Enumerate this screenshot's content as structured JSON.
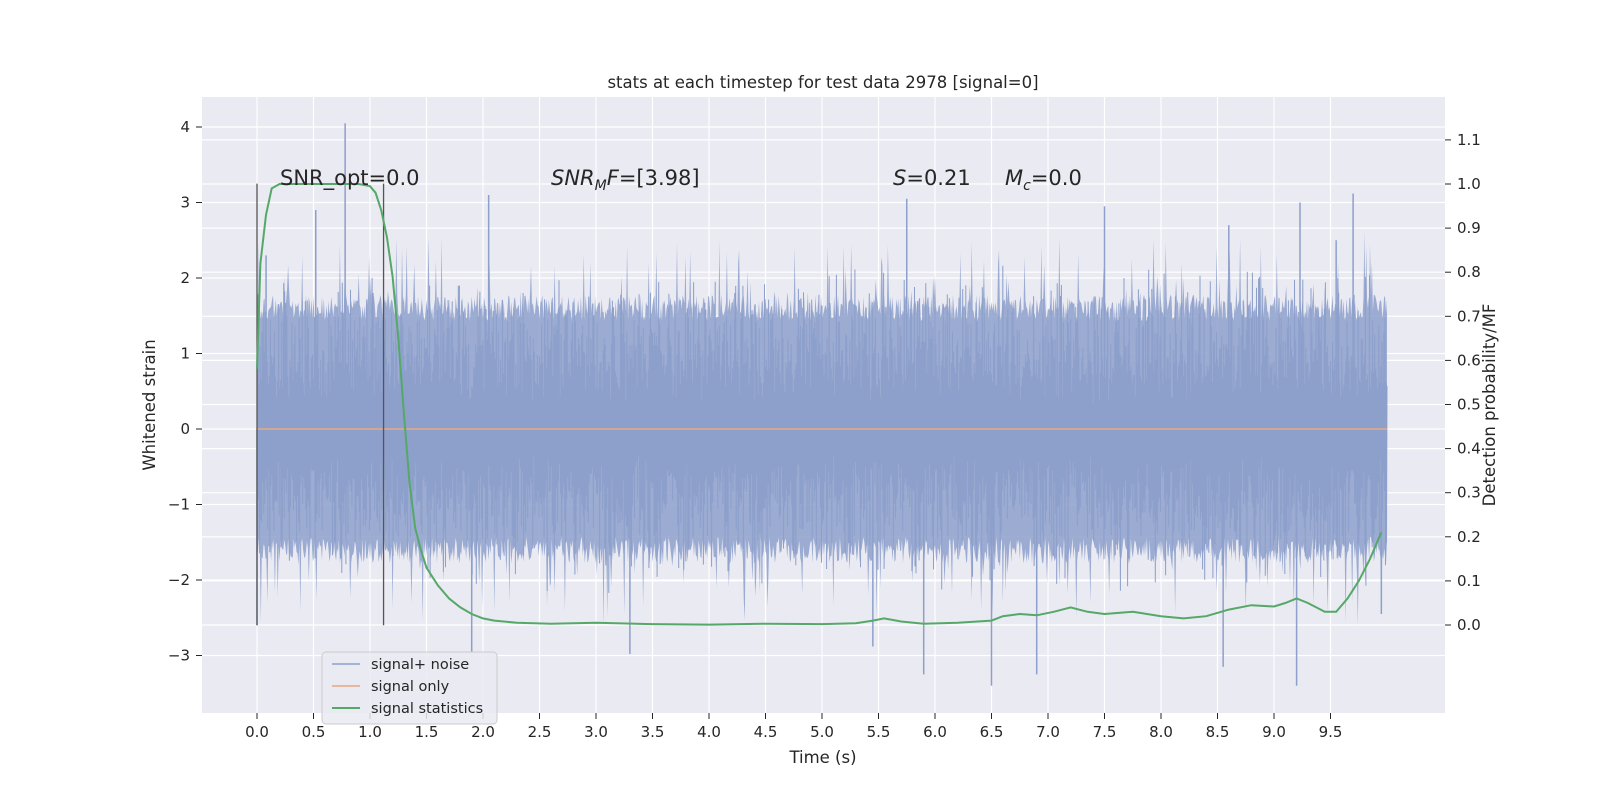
{
  "chart_data": {
    "type": "line",
    "title": "stats at each timestep for test data 2978 [signal=0]",
    "xlabel": "Time (s)",
    "ylabel": "Whitened strain",
    "ylabel_right": "Detection probability/MF",
    "xlim": [
      -0.48,
      10.5
    ],
    "ylim": [
      -3.75,
      4.4
    ],
    "ylim_right": [
      -0.2,
      1.19
    ],
    "x_ticks": [
      "0.0",
      "0.5",
      "1.0",
      "1.5",
      "2.0",
      "2.5",
      "3.0",
      "3.5",
      "4.0",
      "4.5",
      "5.0",
      "5.5",
      "6.0",
      "6.5",
      "7.0",
      "7.5",
      "8.0",
      "8.5",
      "9.0",
      "9.5"
    ],
    "y_ticks": [
      "4",
      "3",
      "2",
      "1",
      "0",
      "−1",
      "−2",
      "−3"
    ],
    "y_ticks_right": [
      "0.0",
      "0.1",
      "0.2",
      "0.3",
      "0.4",
      "0.5",
      "0.6",
      "0.7",
      "0.8",
      "0.9",
      "1.0",
      "1.1"
    ],
    "grid": true,
    "legend_position": "lower-left",
    "colors": {
      "noise": "#8da0cb",
      "signal": "#e8a882",
      "stats": "#55a868",
      "vline": "#555555",
      "axes_bg": "#eaeaf2",
      "grid": "#ffffff"
    },
    "noise_series": {
      "name": "signal+ noise",
      "x_range": [
        0.0,
        10.0
      ],
      "typical_band": [
        -1.5,
        1.5
      ],
      "notable_peaks": [
        [
          0.78,
          4.05
        ],
        [
          0.52,
          2.9
        ],
        [
          9.7,
          3.12
        ],
        [
          9.23,
          3.0
        ],
        [
          2.05,
          3.1
        ],
        [
          7.5,
          2.95
        ],
        [
          5.75,
          3.05
        ],
        [
          0.08,
          2.3
        ],
        [
          9.55,
          2.5
        ],
        [
          8.6,
          2.7
        ]
      ],
      "notable_troughs": [
        [
          1.9,
          -2.95
        ],
        [
          3.3,
          -2.98
        ],
        [
          5.45,
          -2.88
        ],
        [
          5.9,
          -3.25
        ],
        [
          6.5,
          -3.4
        ],
        [
          6.9,
          -3.25
        ],
        [
          8.55,
          -3.15
        ],
        [
          9.2,
          -3.4
        ],
        [
          0.0,
          -2.6
        ],
        [
          9.95,
          -2.45
        ]
      ]
    },
    "signal_series": {
      "name": "signal only",
      "x": [
        0.0,
        10.0
      ],
      "y": [
        0.0,
        0.0
      ]
    },
    "stats_series": {
      "name": "signal statistics",
      "x": [
        0.0,
        0.03,
        0.08,
        0.13,
        0.2,
        0.35,
        0.6,
        0.9,
        1.0,
        1.05,
        1.1,
        1.15,
        1.2,
        1.25,
        1.3,
        1.35,
        1.4,
        1.45,
        1.5,
        1.6,
        1.7,
        1.8,
        1.9,
        2.0,
        2.1,
        2.3,
        2.6,
        3.0,
        3.5,
        4.0,
        4.5,
        5.0,
        5.3,
        5.45,
        5.55,
        5.7,
        5.9,
        6.2,
        6.5,
        6.6,
        6.75,
        6.9,
        7.05,
        7.2,
        7.35,
        7.5,
        7.75,
        8.0,
        8.2,
        8.4,
        8.6,
        8.8,
        9.0,
        9.1,
        9.2,
        9.3,
        9.45,
        9.55,
        9.65,
        9.75,
        9.85,
        9.95
      ],
      "y": [
        0.58,
        0.82,
        0.93,
        0.99,
        1.0,
        1.0,
        1.0,
        1.0,
        0.995,
        0.98,
        0.94,
        0.88,
        0.79,
        0.65,
        0.48,
        0.32,
        0.22,
        0.17,
        0.13,
        0.09,
        0.06,
        0.04,
        0.025,
        0.015,
        0.01,
        0.005,
        0.003,
        0.005,
        0.002,
        0.001,
        0.003,
        0.002,
        0.004,
        0.01,
        0.015,
        0.008,
        0.003,
        0.005,
        0.01,
        0.02,
        0.025,
        0.022,
        0.03,
        0.04,
        0.03,
        0.025,
        0.03,
        0.02,
        0.015,
        0.02,
        0.035,
        0.045,
        0.042,
        0.05,
        0.06,
        0.05,
        0.03,
        0.03,
        0.06,
        0.1,
        0.15,
        0.21
      ]
    },
    "vlines": [
      {
        "x": 0.0,
        "ymin": -2.6,
        "ymax": 3.25
      },
      {
        "x": 1.12,
        "ymin": -2.6,
        "ymax": 3.25
      }
    ],
    "annotations": {
      "snr_opt": "SNR_opt=0.0",
      "snr_mf_sym": "SNR",
      "snr_mf_sub": "M",
      "snr_mf_f": "F",
      "snr_mf_val": "=[3.98]",
      "s_sym": "S",
      "s_val": "=0.21",
      "mc_sym": "M",
      "mc_sub": "c",
      "mc_val": "=0.0"
    }
  }
}
